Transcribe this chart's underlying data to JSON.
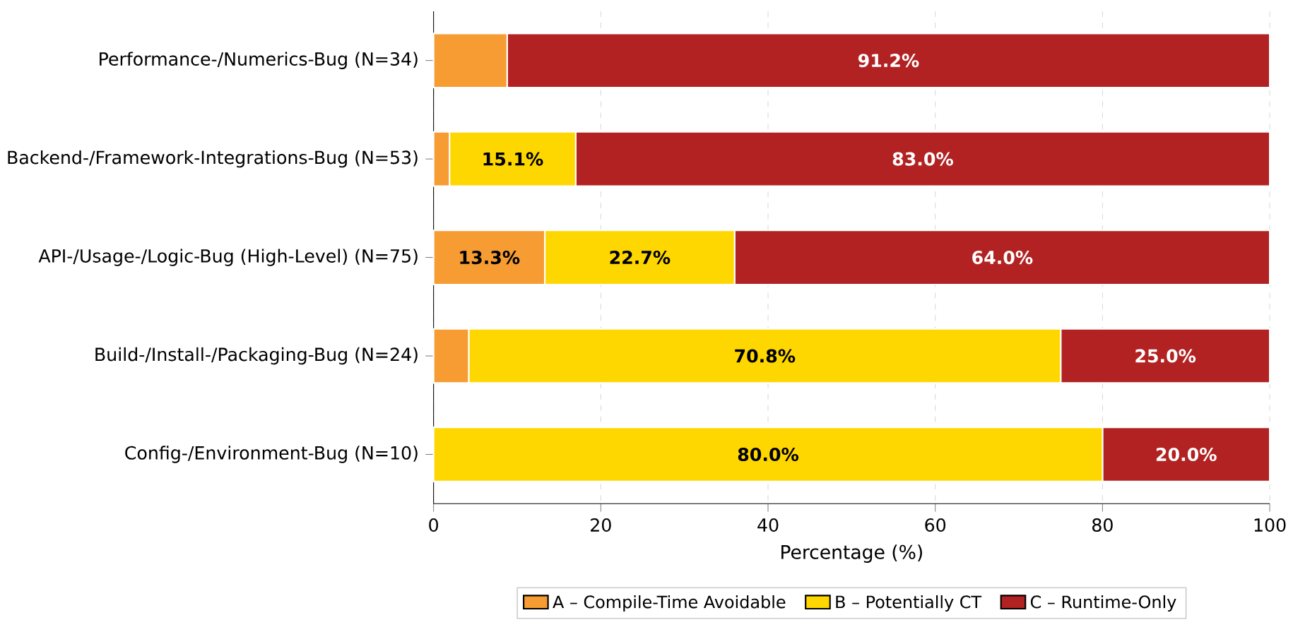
{
  "chart_data": {
    "type": "bar",
    "orientation": "horizontal",
    "stacked": true,
    "categories": [
      "Performance-/Numerics-Bug (N=34)",
      "Backend-/Framework-Integrations-Bug (N=53)",
      "API-/Usage-/Logic-Bug (High-Level) (N=75)",
      "Build-/Install-/Packaging-Bug (N=24)",
      "Config-/Environment-Bug (N=10)"
    ],
    "series": [
      {
        "name": "A – Compile-Time Avoidable",
        "color": "#f69c33",
        "values": [
          8.8,
          1.9,
          13.3,
          4.2,
          0
        ],
        "value_labels": [
          null,
          null,
          "13.3%",
          null,
          null
        ]
      },
      {
        "name": "B – Potentially CT",
        "color": "#ffd700",
        "values": [
          0,
          15.1,
          22.7,
          70.8,
          80.0
        ],
        "value_labels": [
          null,
          "15.1%",
          "22.7%",
          "70.8%",
          "80.0%"
        ]
      },
      {
        "name": "C – Runtime-Only",
        "color": "#b22222",
        "values": [
          91.2,
          83.0,
          64.0,
          25.0,
          20.0
        ],
        "value_labels": [
          "91.2%",
          "83.0%",
          "64.0%",
          "25.0%",
          "20.0%"
        ]
      }
    ],
    "xlabel": "Percentage (%)",
    "xlim": [
      0,
      100
    ],
    "xticks": [
      0,
      20,
      40,
      60,
      80,
      100
    ],
    "grid": "x",
    "legend": "bottom"
  }
}
